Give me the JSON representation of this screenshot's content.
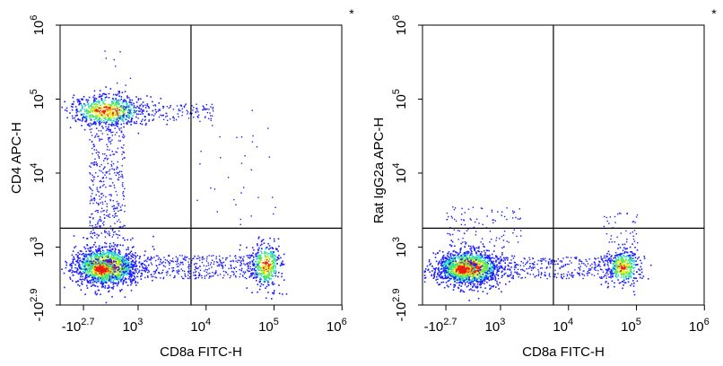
{
  "chart_data": [
    {
      "type": "scatter",
      "subtype": "flow-cytometry-density-dot-plot",
      "corner_mark": "*",
      "xlabel": "CD8a FITC-H",
      "ylabel": "CD4 APC-H",
      "x_scale": "biexponential",
      "y_scale": "biexponential",
      "xlim": [
        "-10^2.7",
        "10^6"
      ],
      "ylim": [
        "-10^2.9",
        "10^6"
      ],
      "x_ticks": [
        {
          "base": "-10",
          "exp": "2.7",
          "value": -501
        },
        {
          "base": "10",
          "exp": "3",
          "value": 1000
        },
        {
          "base": "10",
          "exp": "4",
          "value": 10000
        },
        {
          "base": "10",
          "exp": "5",
          "value": 100000
        },
        {
          "base": "10",
          "exp": "6",
          "value": 1000000
        }
      ],
      "y_ticks": [
        {
          "base": "-10",
          "exp": "2.9",
          "value": -794
        },
        {
          "base": "10",
          "exp": "3",
          "value": 1000
        },
        {
          "base": "10",
          "exp": "4",
          "value": 10000
        },
        {
          "base": "10",
          "exp": "5",
          "value": 100000
        },
        {
          "base": "10",
          "exp": "6",
          "value": 1000000
        }
      ],
      "quadrant_gate": {
        "x": 6000,
        "y": 1800
      },
      "populations": [
        {
          "name": "CD4+ CD8a-",
          "x_center": 320,
          "y_center": 42000,
          "density": "high"
        },
        {
          "name": "CD4- CD8a- (double negative)",
          "x_center": 320,
          "y_center": 520,
          "density": "very high"
        },
        {
          "name": "CD4- CD8a+",
          "x_center": 55000,
          "y_center": 560,
          "density": "high"
        },
        {
          "name": "CD4+ CD8a- transition streak",
          "x_center": 320,
          "y_center": 5000,
          "density": "low"
        }
      ]
    },
    {
      "type": "scatter",
      "subtype": "flow-cytometry-density-dot-plot",
      "corner_mark": "*",
      "xlabel": "CD8a FITC-H",
      "ylabel": "Rat IgG2a APC-H",
      "x_scale": "biexponential",
      "y_scale": "biexponential",
      "xlim": [
        "-10^2.7",
        "10^6"
      ],
      "ylim": [
        "-10^2.9",
        "10^6"
      ],
      "x_ticks": [
        {
          "base": "-10",
          "exp": "2.7",
          "value": -501
        },
        {
          "base": "10",
          "exp": "3",
          "value": 1000
        },
        {
          "base": "10",
          "exp": "4",
          "value": 10000
        },
        {
          "base": "10",
          "exp": "5",
          "value": 100000
        },
        {
          "base": "10",
          "exp": "6",
          "value": 1000000
        }
      ],
      "y_ticks": [
        {
          "base": "-10",
          "exp": "2.9",
          "value": -794
        },
        {
          "base": "10",
          "exp": "3",
          "value": 1000
        },
        {
          "base": "10",
          "exp": "4",
          "value": 10000
        },
        {
          "base": "10",
          "exp": "5",
          "value": 100000
        },
        {
          "base": "10",
          "exp": "6",
          "value": 1000000
        }
      ],
      "quadrant_gate": {
        "x": 6000,
        "y": 1800
      },
      "populations": [
        {
          "name": "IgG2a- CD8a- (double negative)",
          "x_center": 320,
          "y_center": 530,
          "density": "very high"
        },
        {
          "name": "IgG2a- CD8a+",
          "x_center": 55000,
          "y_center": 560,
          "density": "high"
        }
      ]
    }
  ],
  "palette": {
    "density_low": "#1c1cff",
    "density_mid": "#21d6c8",
    "density_midhigh": "#5ee84a",
    "density_high": "#f2f22a",
    "density_peak": "#ee1a12",
    "axis": "#000000",
    "background": "#ffffff"
  }
}
